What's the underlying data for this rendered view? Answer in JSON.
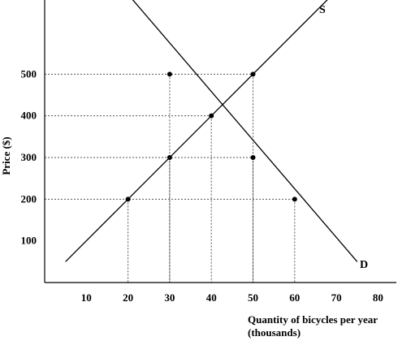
{
  "chart_data": {
    "type": "line",
    "title": "",
    "xlabel": [
      "Quantity of bicycles per year",
      "(thousands)"
    ],
    "ylabel": "Price ($)",
    "xlim": [
      0,
      85
    ],
    "ylim": [
      0,
      600
    ],
    "x_ticks": [
      10,
      20,
      30,
      40,
      50,
      60,
      70,
      80
    ],
    "y_ticks": [
      100,
      200,
      300,
      400,
      500
    ],
    "grid": false,
    "legend": "none",
    "series": [
      {
        "name": "S",
        "x": [
          5,
          75
        ],
        "y": [
          50,
          750
        ],
        "color": "#000000"
      },
      {
        "name": "D",
        "x": [
          15,
          75
        ],
        "y": [
          750,
          50
        ],
        "color": "#000000"
      }
    ],
    "points": [
      {
        "x": 20,
        "y": 200
      },
      {
        "x": 30,
        "y": 300
      },
      {
        "x": 30,
        "y": 500
      },
      {
        "x": 40,
        "y": 400
      },
      {
        "x": 50,
        "y": 300
      },
      {
        "x": 50,
        "y": 500
      },
      {
        "x": 60,
        "y": 200
      }
    ],
    "guides": [
      {
        "x": 50,
        "y": 500
      },
      {
        "x": 40,
        "y": 400
      },
      {
        "x": 50,
        "y": 300
      },
      {
        "x": 60,
        "y": 200
      }
    ]
  }
}
